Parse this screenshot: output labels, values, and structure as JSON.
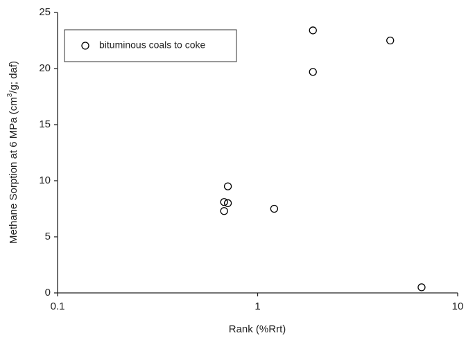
{
  "chart_data": {
    "type": "scatter",
    "xlabel": "Rank (%Rrt)",
    "ylabel": [
      "Methane Sorption at 6 MPa (cm",
      "3",
      "/g; daf)"
    ],
    "xscale": "log",
    "xlim": [
      0.1,
      10
    ],
    "xticks": [
      0.1,
      1,
      10
    ],
    "ylim": [
      0,
      25
    ],
    "yticks": [
      0,
      5,
      10,
      15,
      20,
      25
    ],
    "legend": "upper left",
    "series": [
      {
        "name": "bituminous coals to coke",
        "color": "#000000",
        "x": [
          0.71,
          0.68,
          0.71,
          0.68,
          1.21,
          1.89,
          1.89,
          4.6,
          6.6
        ],
        "values": [
          9.5,
          8.1,
          8.0,
          7.3,
          7.5,
          19.7,
          23.4,
          22.5,
          0.5
        ]
      }
    ]
  }
}
